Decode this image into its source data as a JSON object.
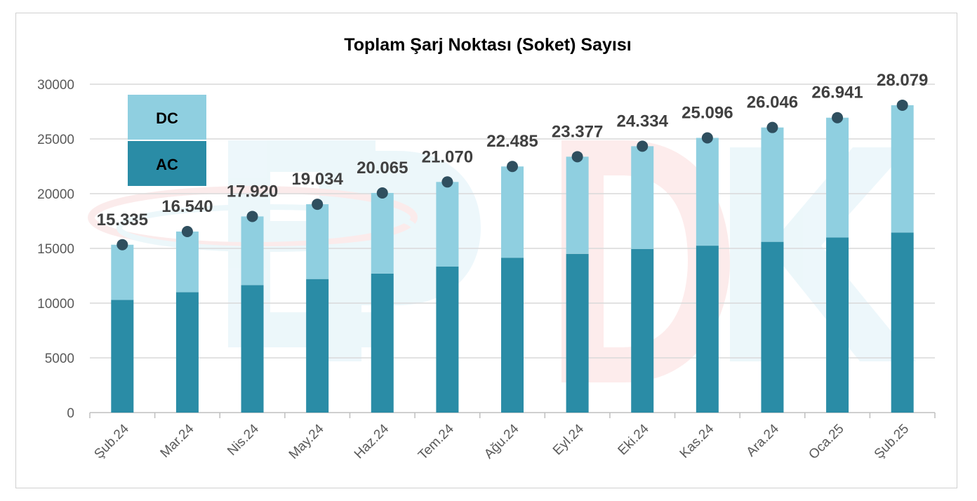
{
  "chart_data": {
    "type": "bar",
    "title": "Toplam Şarj Noktası (Soket) Sayısı",
    "xlabel": "",
    "ylabel": "",
    "ylim": [
      0,
      30000
    ],
    "yticks": [
      0,
      5000,
      10000,
      15000,
      20000,
      25000,
      30000
    ],
    "grid": true,
    "legend_position": "top-left",
    "categories": [
      "Şub.24",
      "Mar.24",
      "Nis.24",
      "May.24",
      "Haz.24",
      "Tem.24",
      "Ağu.24",
      "Eyl.24",
      "Eki.24",
      "Kas.24",
      "Ara.24",
      "Oca.25",
      "Şub.25"
    ],
    "series": [
      {
        "name": "AC",
        "color": "#2a8ca6",
        "values": [
          10300,
          11000,
          11650,
          12200,
          12700,
          13350,
          14150,
          14500,
          14950,
          15250,
          15600,
          16000,
          16450
        ]
      },
      {
        "name": "DC",
        "color": "#8fcfe0",
        "values": [
          5035,
          5540,
          6270,
          6834,
          7365,
          7720,
          8335,
          8877,
          9384,
          9846,
          10446,
          10941,
          11629
        ]
      }
    ],
    "totals": [
      15335,
      16540,
      17920,
      19034,
      20065,
      21070,
      22485,
      23377,
      24334,
      25096,
      26046,
      26941,
      28079
    ],
    "total_labels": [
      "15.335",
      "16.540",
      "17.920",
      "19.034",
      "20.065",
      "21.070",
      "22.485",
      "23.377",
      "24.334",
      "25.096",
      "26.046",
      "26.941",
      "28.079"
    ],
    "marker_color": "#2f4f5f",
    "gridline_color": "#d9d9d9",
    "watermark": "EPDK"
  }
}
